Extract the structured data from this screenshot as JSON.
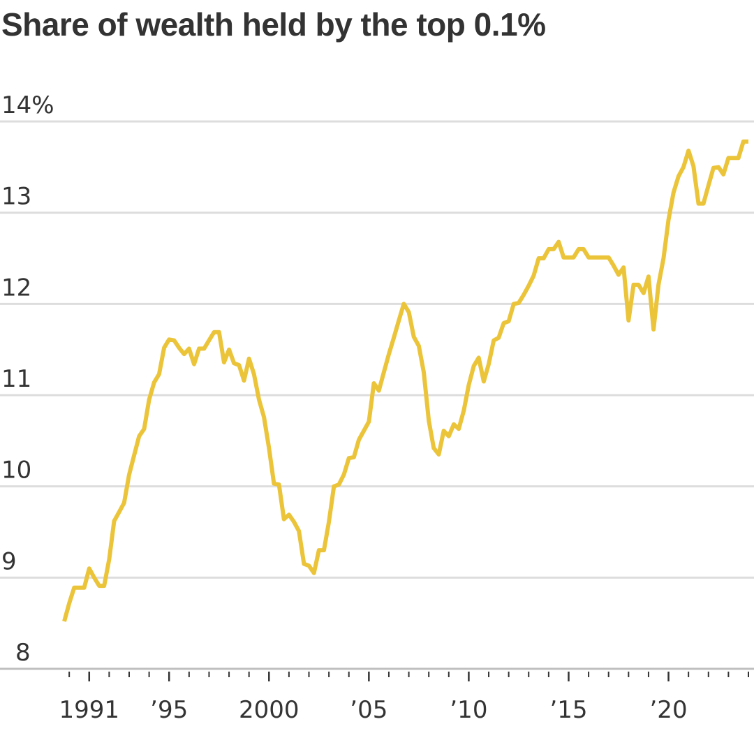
{
  "chart_data": {
    "type": "line",
    "title": "Share of wealth held by the top 0.1%",
    "xlabel": "",
    "ylabel": "",
    "ylim": [
      8,
      14
    ],
    "y_ticks": [
      {
        "value": 14,
        "label": "14%"
      },
      {
        "value": 13,
        "label": "13"
      },
      {
        "value": 12,
        "label": "12"
      },
      {
        "value": 11,
        "label": "11"
      },
      {
        "value": 10,
        "label": "10"
      },
      {
        "value": 9,
        "label": "9"
      },
      {
        "value": 8,
        "label": "8"
      }
    ],
    "x_ticks": [
      {
        "value": 1991,
        "label": "1991"
      },
      {
        "value": 1995,
        "label": "’95"
      },
      {
        "value": 2000,
        "label": "2000"
      },
      {
        "value": 2005,
        "label": "’05"
      },
      {
        "value": 2010,
        "label": "’10"
      },
      {
        "value": 2015,
        "label": "’15"
      },
      {
        "value": 2020,
        "label": "’20"
      }
    ],
    "line_color": "#ebc43a",
    "grid": true,
    "series": [
      {
        "values": [
          [
            1989.75,
            8.52
          ],
          [
            1990.0,
            8.72
          ],
          [
            1990.25,
            8.89
          ],
          [
            1990.5,
            8.89
          ],
          [
            1990.75,
            8.89
          ],
          [
            1991.0,
            9.1
          ],
          [
            1991.25,
            9.0
          ],
          [
            1991.5,
            8.91
          ],
          [
            1991.75,
            8.91
          ],
          [
            1992.0,
            9.2
          ],
          [
            1992.25,
            9.62
          ],
          [
            1992.5,
            9.72
          ],
          [
            1992.75,
            9.82
          ],
          [
            1993.0,
            10.13
          ],
          [
            1993.25,
            10.34
          ],
          [
            1993.5,
            10.55
          ],
          [
            1993.75,
            10.63
          ],
          [
            1994.0,
            10.95
          ],
          [
            1994.25,
            11.14
          ],
          [
            1994.5,
            11.23
          ],
          [
            1994.75,
            11.52
          ],
          [
            1995.0,
            11.61
          ],
          [
            1995.25,
            11.6
          ],
          [
            1995.5,
            11.52
          ],
          [
            1995.75,
            11.45
          ],
          [
            1996.0,
            11.51
          ],
          [
            1996.25,
            11.34
          ],
          [
            1996.5,
            11.51
          ],
          [
            1996.75,
            11.51
          ],
          [
            1997.0,
            11.6
          ],
          [
            1997.25,
            11.69
          ],
          [
            1997.5,
            11.69
          ],
          [
            1997.75,
            11.36
          ],
          [
            1998.0,
            11.5
          ],
          [
            1998.25,
            11.35
          ],
          [
            1998.5,
            11.33
          ],
          [
            1998.75,
            11.16
          ],
          [
            1999.0,
            11.4
          ],
          [
            1999.25,
            11.23
          ],
          [
            1999.5,
            10.95
          ],
          [
            1999.75,
            10.76
          ],
          [
            2000.0,
            10.42
          ],
          [
            2000.25,
            10.03
          ],
          [
            2000.5,
            10.02
          ],
          [
            2000.75,
            9.64
          ],
          [
            2001.0,
            9.69
          ],
          [
            2001.25,
            9.61
          ],
          [
            2001.5,
            9.51
          ],
          [
            2001.75,
            9.15
          ],
          [
            2002.0,
            9.13
          ],
          [
            2002.25,
            9.05
          ],
          [
            2002.5,
            9.3
          ],
          [
            2002.75,
            9.3
          ],
          [
            2003.0,
            9.61
          ],
          [
            2003.25,
            10.0
          ],
          [
            2003.5,
            10.02
          ],
          [
            2003.75,
            10.13
          ],
          [
            2004.0,
            10.31
          ],
          [
            2004.25,
            10.32
          ],
          [
            2004.5,
            10.51
          ],
          [
            2004.75,
            10.61
          ],
          [
            2005.0,
            10.71
          ],
          [
            2005.25,
            11.13
          ],
          [
            2005.5,
            11.05
          ],
          [
            2005.75,
            11.25
          ],
          [
            2006.0,
            11.45
          ],
          [
            2006.25,
            11.63
          ],
          [
            2006.5,
            11.82
          ],
          [
            2006.75,
            12.0
          ],
          [
            2007.0,
            11.91
          ],
          [
            2007.25,
            11.64
          ],
          [
            2007.5,
            11.54
          ],
          [
            2007.75,
            11.25
          ],
          [
            2008.0,
            10.72
          ],
          [
            2008.25,
            10.42
          ],
          [
            2008.5,
            10.35
          ],
          [
            2008.75,
            10.61
          ],
          [
            2009.0,
            10.55
          ],
          [
            2009.25,
            10.68
          ],
          [
            2009.5,
            10.63
          ],
          [
            2009.75,
            10.83
          ],
          [
            2010.0,
            11.11
          ],
          [
            2010.25,
            11.32
          ],
          [
            2010.5,
            11.41
          ],
          [
            2010.75,
            11.15
          ],
          [
            2011.0,
            11.34
          ],
          [
            2011.25,
            11.6
          ],
          [
            2011.5,
            11.63
          ],
          [
            2011.75,
            11.79
          ],
          [
            2012.0,
            11.81
          ],
          [
            2012.25,
            12.0
          ],
          [
            2012.5,
            12.01
          ],
          [
            2012.75,
            12.1
          ],
          [
            2013.0,
            12.2
          ],
          [
            2013.25,
            12.31
          ],
          [
            2013.5,
            12.5
          ],
          [
            2013.75,
            12.5
          ],
          [
            2014.0,
            12.6
          ],
          [
            2014.25,
            12.6
          ],
          [
            2014.5,
            12.68
          ],
          [
            2014.75,
            12.51
          ],
          [
            2015.0,
            12.51
          ],
          [
            2015.25,
            12.51
          ],
          [
            2015.5,
            12.6
          ],
          [
            2015.75,
            12.6
          ],
          [
            2016.0,
            12.51
          ],
          [
            2016.25,
            12.51
          ],
          [
            2016.5,
            12.51
          ],
          [
            2016.75,
            12.51
          ],
          [
            2017.0,
            12.51
          ],
          [
            2017.25,
            12.42
          ],
          [
            2017.5,
            12.32
          ],
          [
            2017.75,
            12.4
          ],
          [
            2018.0,
            11.82
          ],
          [
            2018.25,
            12.21
          ],
          [
            2018.5,
            12.21
          ],
          [
            2018.75,
            12.12
          ],
          [
            2019.0,
            12.3
          ],
          [
            2019.25,
            11.72
          ],
          [
            2019.5,
            12.21
          ],
          [
            2019.75,
            12.5
          ],
          [
            2020.0,
            12.92
          ],
          [
            2020.25,
            13.22
          ],
          [
            2020.5,
            13.4
          ],
          [
            2020.75,
            13.5
          ],
          [
            2021.0,
            13.68
          ],
          [
            2021.25,
            13.51
          ],
          [
            2021.5,
            13.1
          ],
          [
            2021.75,
            13.1
          ],
          [
            2022.0,
            13.3
          ],
          [
            2022.25,
            13.49
          ],
          [
            2022.5,
            13.5
          ],
          [
            2022.75,
            13.42
          ],
          [
            2023.0,
            13.6
          ],
          [
            2023.25,
            13.6
          ],
          [
            2023.5,
            13.6
          ],
          [
            2023.75,
            13.78
          ],
          [
            2024.0,
            13.78
          ]
        ]
      }
    ]
  }
}
